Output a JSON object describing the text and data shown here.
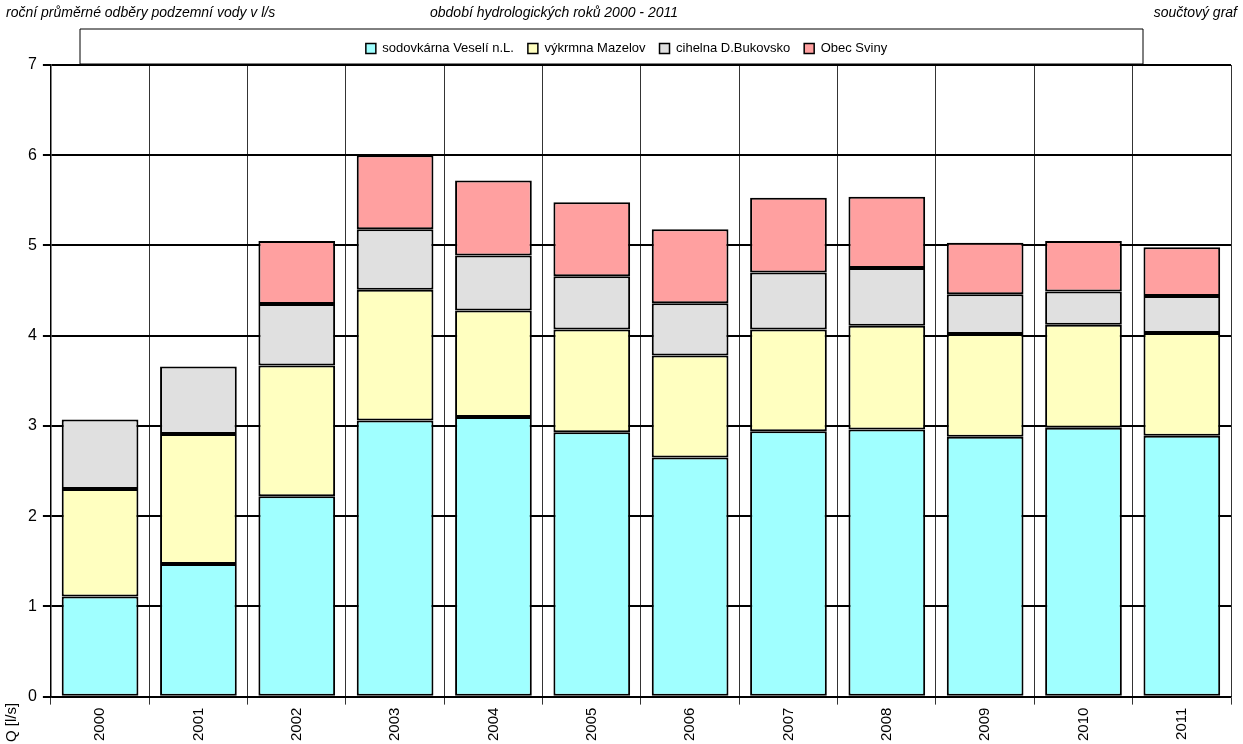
{
  "chart_data": {
    "type": "bar",
    "stacked": true,
    "title": "roční průměrné odběry podzemní vody v l/s",
    "subtitle": "období hydrologických roků 2000 - 2011",
    "annotations": [
      "součtový graf"
    ],
    "ylabel": "Q [l/s]",
    "categories": [
      "2000",
      "2001",
      "2002",
      "2003",
      "2004",
      "2005",
      "2006",
      "2007",
      "2008",
      "2009",
      "2010",
      "2011"
    ],
    "series": [
      {
        "name": "sodovkárna Veselí n.L.",
        "color": "#a0ffff",
        "values": [
          1.11,
          1.47,
          2.22,
          3.06,
          3.1,
          2.93,
          2.65,
          2.94,
          2.96,
          2.88,
          2.98,
          2.89
        ]
      },
      {
        "name": "výkrmna Mazelov",
        "color": "#ffffc0",
        "values": [
          1.19,
          1.44,
          1.45,
          1.45,
          1.18,
          1.14,
          1.13,
          1.13,
          1.15,
          1.14,
          1.14,
          1.14
        ]
      },
      {
        "name": "cihelna D.Bukovsko",
        "color": "#e0e0e0",
        "values": [
          0.77,
          0.75,
          0.68,
          0.67,
          0.61,
          0.59,
          0.58,
          0.63,
          0.64,
          0.44,
          0.37,
          0.41
        ]
      },
      {
        "name": "Obec Sviny",
        "color": "#ffa0a0",
        "values": [
          null,
          null,
          0.7,
          0.82,
          0.83,
          0.82,
          0.82,
          0.83,
          0.79,
          0.57,
          0.56,
          0.54
        ]
      }
    ],
    "ylim": [
      0,
      7
    ],
    "yticks": [
      0,
      1,
      2,
      3,
      4,
      5,
      6,
      7
    ],
    "grid": true,
    "legend": "top"
  }
}
